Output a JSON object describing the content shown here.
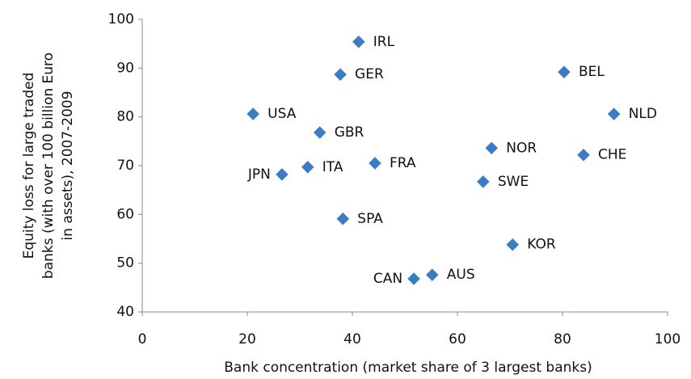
{
  "chart_data": {
    "type": "scatter",
    "x_label": "Bank concentration (market share of 3 largest banks)",
    "y_label": [
      "Equity loss for large traded",
      "banks (with over 100 billion Euro",
      "in assets), 2007-2009"
    ],
    "point_labels": [
      "IRL",
      "GER",
      "USA",
      "GBR",
      "JPN",
      "ITA",
      "FRA",
      "SPA",
      "CAN",
      "AUS",
      "SWE",
      "NOR",
      "KOR",
      "BEL",
      "CHE",
      "NLD"
    ],
    "x": [
      41.2,
      37.7,
      21.1,
      33.8,
      26.6,
      31.5,
      44.3,
      38.2,
      51.7,
      55.2,
      64.9,
      66.5,
      70.5,
      80.3,
      84.0,
      89.8
    ],
    "values": [
      95.4,
      88.7,
      80.6,
      76.8,
      68.2,
      69.7,
      70.5,
      59.1,
      46.8,
      47.6,
      66.7,
      73.6,
      53.8,
      89.2,
      72.2,
      80.6
    ],
    "color": "#3a7dc4",
    "xlim": [
      0,
      100
    ],
    "xticks": [
      0,
      20,
      40,
      60,
      80,
      100
    ],
    "ylim": [
      40,
      100
    ],
    "yticks": [
      40,
      50,
      60,
      70,
      80,
      90,
      100
    ],
    "grid": false
  }
}
